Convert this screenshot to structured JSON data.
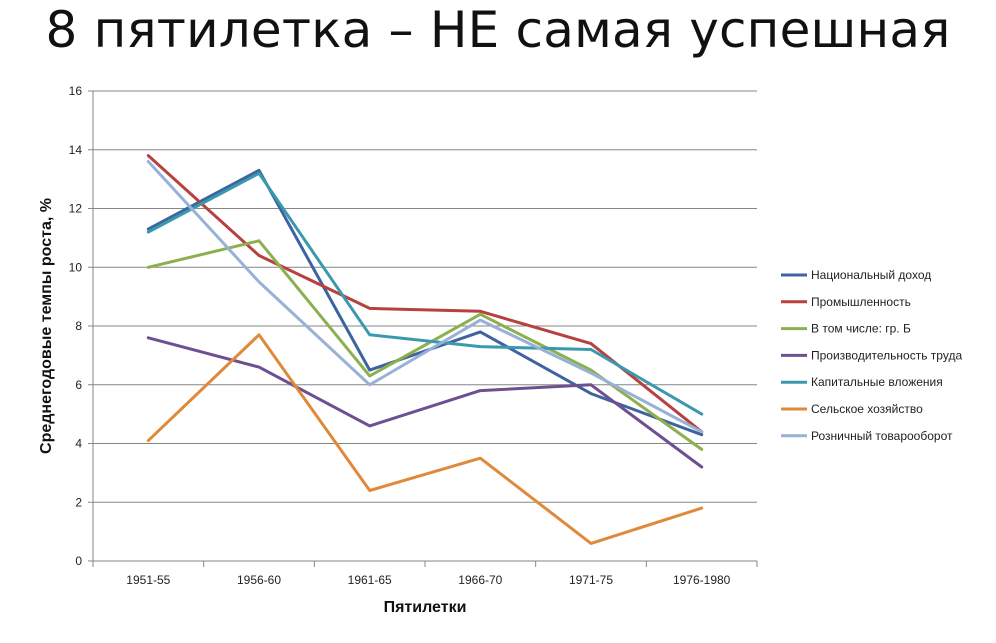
{
  "slide": {
    "title": "8 пятилетка – НЕ самая успешная"
  },
  "chart_data": {
    "type": "line",
    "title": "",
    "xlabel": "Пятилетки",
    "ylabel": "Среднегодовые темпы роста, %",
    "categories": [
      "1951-55",
      "1956-60",
      "1961-65",
      "1966-70",
      "1971-75",
      "1976-1980"
    ],
    "ylim": [
      0,
      16
    ],
    "yticks": [
      0,
      2,
      4,
      6,
      8,
      10,
      12,
      14,
      16
    ],
    "grid": "horizontal",
    "legend": "right",
    "series": [
      {
        "name": "Национальный доход",
        "color": "#3E64A0",
        "values": [
          11.3,
          13.3,
          6.5,
          7.8,
          5.7,
          4.3
        ]
      },
      {
        "name": "Промышленность",
        "color": "#B7413F",
        "values": [
          13.8,
          10.4,
          8.6,
          8.5,
          7.4,
          4.4
        ]
      },
      {
        "name": "В том числе: гр. Б",
        "color": "#8DB04E",
        "values": [
          10.0,
          10.9,
          6.3,
          8.4,
          6.5,
          3.8
        ]
      },
      {
        "name": "Производительность труда",
        "color": "#6E4F91",
        "values": [
          7.6,
          6.6,
          4.6,
          5.8,
          6.0,
          3.2
        ]
      },
      {
        "name": "Капитальные вложения",
        "color": "#3A99AE",
        "values": [
          11.2,
          13.2,
          7.7,
          7.3,
          7.2,
          5.0
        ]
      },
      {
        "name": "Сельское хозяйство",
        "color": "#E0893A",
        "values": [
          4.1,
          7.7,
          2.4,
          3.5,
          0.6,
          1.8
        ]
      },
      {
        "name": "Розничный товарооборот",
        "color": "#98B1D6",
        "values": [
          13.6,
          9.5,
          6.0,
          8.2,
          6.4,
          4.4
        ]
      }
    ]
  }
}
